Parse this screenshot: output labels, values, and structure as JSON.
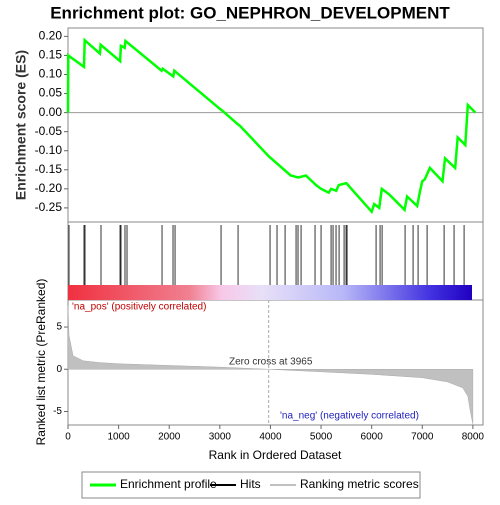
{
  "chart_data": {
    "type": "enrichment",
    "title": "Enrichment plot: GO_NEPHRON_DEVELOPMENT",
    "ylabel": "Enrichment score (ES)",
    "y2label": "Ranked list metric (PreRanked)",
    "xlabel": "Rank in Ordered Dataset",
    "xlim": [
      0,
      8200
    ],
    "xticks": [
      0,
      1000,
      2000,
      3000,
      4000,
      5000,
      6000,
      7000,
      8000
    ],
    "ylim": [
      -0.287,
      0.222
    ],
    "yticks": [
      {
        "value": 0.2,
        "label": "0.20"
      },
      0.15,
      {
        "value": 0.1,
        "label": "0.10"
      },
      0.05,
      {
        "value": 0,
        "label": "0.00"
      },
      -0.05,
      {
        "value": -0.1,
        "label": "-0.10"
      },
      -0.15,
      {
        "value": -0.2,
        "label": "-0.20"
      },
      -0.25
    ],
    "y2lim": [
      -6.6,
      8.2
    ],
    "y2ticks": [
      5,
      0,
      -5
    ],
    "series": [
      {
        "name": "Enrichment profile",
        "color": "#00ff00",
        "x": [
          0,
          5,
          316,
          330,
          630,
          645,
          1030,
          1045,
          1120,
          1135,
          1850,
          1870,
          2080,
          2100,
          3000,
          3050,
          3350,
          3400,
          3970,
          4400,
          4550,
          4700,
          4900,
          5000,
          5150,
          5200,
          5300,
          5350,
          5500,
          6000,
          6050,
          6150,
          6200,
          6350,
          6650,
          6700,
          6900,
          6950,
          7000,
          7050,
          7150,
          7400,
          7450,
          7650,
          7700,
          7850,
          7900,
          8050
        ],
        "values": [
          0,
          0.15,
          0.12,
          0.19,
          0.155,
          0.178,
          0.135,
          0.175,
          0.17,
          0.188,
          0.11,
          0.115,
          0.095,
          0.11,
          0.01,
          0.005,
          -0.03,
          -0.035,
          -0.115,
          -0.165,
          -0.17,
          -0.165,
          -0.19,
          -0.2,
          -0.21,
          -0.2,
          -0.205,
          -0.19,
          -0.185,
          -0.26,
          -0.24,
          -0.25,
          -0.2,
          -0.215,
          -0.255,
          -0.22,
          -0.245,
          -0.21,
          -0.18,
          -0.175,
          -0.145,
          -0.18,
          -0.12,
          -0.145,
          -0.065,
          -0.085,
          0.02,
          0
        ]
      },
      {
        "name": "Hits",
        "color": "#000000",
        "x": [
          20,
          316,
          336,
          652,
          1028,
          1047,
          1126,
          1166,
          1858,
          2075,
          2115,
          3024,
          3360,
          3992,
          4130,
          4289,
          4506,
          4545,
          4605,
          4881,
          5000,
          5198,
          5237,
          5296,
          5356,
          5455,
          5494,
          5514,
          6087,
          6166,
          6206,
          6660,
          6818,
          6917,
          7095,
          7431,
          7628,
          7826
        ]
      },
      {
        "name": "Ranking metric scores",
        "color": "#c0c0c0",
        "axis": "y2",
        "x": [
          0,
          20,
          100,
          300,
          600,
          1000,
          2000,
          3000,
          3965,
          5000,
          6000,
          7000,
          7500,
          7800,
          7900,
          7950,
          8000
        ],
        "values": [
          7.5,
          4,
          1.6,
          1.0,
          0.8,
          0.65,
          0.45,
          0.25,
          0,
          -0.3,
          -0.6,
          -1.0,
          -1.5,
          -2.2,
          -3.2,
          -5,
          -6.5
        ]
      }
    ],
    "zero_cross": 3965,
    "annotations": [
      "'na_pos' (positively correlated)",
      "Zero cross at 3965",
      "'na_neg' (negatively correlated)"
    ]
  }
}
